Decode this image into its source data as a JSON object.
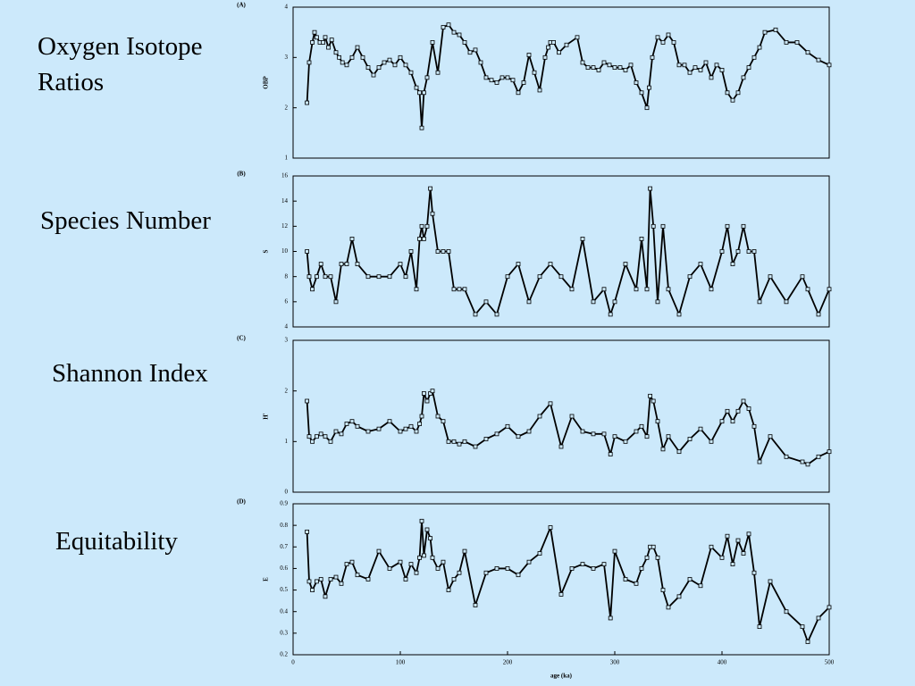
{
  "chart_data": [
    {
      "type": "line",
      "title": "Oxygen Isotope Ratios",
      "panel_label": "(A)",
      "ylabel": "OBP",
      "color": "#000000",
      "x": [
        13,
        15,
        18,
        20,
        22,
        25,
        28,
        30,
        33,
        36,
        40,
        43,
        46,
        50,
        55,
        60,
        65,
        70,
        75,
        80,
        85,
        90,
        95,
        100,
        105,
        110,
        115,
        118,
        120,
        122,
        125,
        130,
        135,
        140,
        145,
        150,
        155,
        160,
        165,
        170,
        175,
        180,
        185,
        190,
        195,
        200,
        205,
        210,
        215,
        220,
        225,
        230,
        235,
        238,
        240,
        243,
        248,
        255,
        265,
        270,
        275,
        280,
        285,
        290,
        295,
        300,
        305,
        310,
        315,
        320,
        325,
        330,
        332,
        335,
        340,
        345,
        350,
        355,
        360,
        365,
        370,
        375,
        380,
        385,
        390,
        395,
        400,
        405,
        410,
        415,
        420,
        425,
        430,
        435,
        440,
        450,
        460,
        470,
        480,
        490,
        500
      ],
      "values": [
        2.1,
        2.9,
        3.3,
        3.5,
        3.4,
        3.3,
        3.3,
        3.4,
        3.2,
        3.35,
        3.1,
        3.0,
        2.9,
        2.85,
        3.0,
        3.2,
        3.0,
        2.8,
        2.65,
        2.8,
        2.9,
        2.95,
        2.85,
        3.0,
        2.85,
        2.7,
        2.4,
        2.3,
        1.6,
        2.3,
        2.6,
        3.3,
        2.7,
        3.6,
        3.65,
        3.5,
        3.45,
        3.3,
        3.1,
        3.15,
        2.9,
        2.6,
        2.55,
        2.5,
        2.6,
        2.6,
        2.55,
        2.3,
        2.5,
        3.05,
        2.7,
        2.35,
        3.0,
        3.2,
        3.3,
        3.3,
        3.1,
        3.25,
        3.4,
        2.9,
        2.8,
        2.8,
        2.75,
        2.9,
        2.85,
        2.8,
        2.8,
        2.75,
        2.85,
        2.5,
        2.3,
        2.0,
        2.4,
        3.0,
        3.4,
        3.3,
        3.45,
        3.3,
        2.85,
        2.85,
        2.7,
        2.8,
        2.75,
        2.9,
        2.6,
        2.85,
        2.75,
        2.3,
        2.15,
        2.3,
        2.6,
        2.8,
        3.0,
        3.2,
        3.5,
        3.55,
        3.3,
        3.3,
        3.1,
        2.95,
        2.85
      ],
      "xlim": [
        0,
        500
      ],
      "ylim": [
        1,
        4
      ],
      "yticks": [
        1,
        2,
        3,
        4
      ]
    },
    {
      "type": "line",
      "title": "Species Number",
      "panel_label": "(B)",
      "ylabel": "S",
      "color": "#000000",
      "x": [
        13,
        15,
        18,
        22,
        26,
        30,
        35,
        40,
        45,
        50,
        55,
        60,
        70,
        80,
        90,
        100,
        105,
        110,
        115,
        118,
        120,
        122,
        125,
        128,
        130,
        135,
        140,
        145,
        150,
        155,
        160,
        170,
        180,
        190,
        200,
        210,
        220,
        230,
        240,
        250,
        260,
        270,
        280,
        290,
        296,
        300,
        310,
        320,
        325,
        330,
        333,
        336,
        340,
        345,
        350,
        360,
        370,
        380,
        390,
        400,
        405,
        410,
        415,
        420,
        425,
        430,
        435,
        445,
        460,
        475,
        480,
        490,
        500
      ],
      "values": [
        10,
        8,
        7,
        8,
        9,
        8,
        8,
        6,
        9,
        9,
        11,
        9,
        8,
        8,
        8,
        9,
        8,
        10,
        7,
        11,
        12,
        11,
        12,
        15,
        13,
        10,
        10,
        10,
        7,
        7,
        7,
        5,
        6,
        5,
        8,
        9,
        6,
        8,
        9,
        8,
        7,
        11,
        6,
        7,
        5,
        6,
        9,
        7,
        11,
        7,
        15,
        12,
        6,
        12,
        7,
        5,
        8,
        9,
        7,
        10,
        12,
        9,
        10,
        12,
        10,
        10,
        6,
        8,
        6,
        8,
        7,
        5,
        7
      ],
      "xlim": [
        0,
        500
      ],
      "ylim": [
        4,
        16
      ],
      "yticks": [
        4,
        6,
        8,
        10,
        12,
        14,
        16
      ]
    },
    {
      "type": "line",
      "title": "Shannon Index",
      "panel_label": "(C)",
      "ylabel": "H'",
      "color": "#000000",
      "x": [
        13,
        15,
        18,
        22,
        26,
        30,
        35,
        40,
        45,
        50,
        55,
        60,
        70,
        80,
        90,
        100,
        105,
        110,
        115,
        118,
        120,
        122,
        125,
        128,
        130,
        135,
        140,
        145,
        150,
        155,
        160,
        170,
        180,
        190,
        200,
        210,
        220,
        230,
        240,
        250,
        260,
        270,
        280,
        290,
        296,
        300,
        310,
        320,
        325,
        330,
        333,
        336,
        340,
        345,
        350,
        360,
        370,
        380,
        390,
        400,
        405,
        410,
        415,
        420,
        425,
        430,
        435,
        445,
        460,
        475,
        480,
        490,
        500
      ],
      "values": [
        1.8,
        1.1,
        1.0,
        1.1,
        1.15,
        1.1,
        1.0,
        1.2,
        1.15,
        1.35,
        1.4,
        1.3,
        1.2,
        1.25,
        1.4,
        1.2,
        1.25,
        1.3,
        1.2,
        1.35,
        1.5,
        1.95,
        1.8,
        1.95,
        2.0,
        1.5,
        1.4,
        1.0,
        1.0,
        0.95,
        1.0,
        0.9,
        1.05,
        1.15,
        1.3,
        1.1,
        1.2,
        1.5,
        1.75,
        0.9,
        1.5,
        1.2,
        1.15,
        1.15,
        0.75,
        1.1,
        1.0,
        1.2,
        1.3,
        1.1,
        1.9,
        1.8,
        1.4,
        0.85,
        1.1,
        0.8,
        1.05,
        1.25,
        1.0,
        1.4,
        1.6,
        1.4,
        1.6,
        1.8,
        1.65,
        1.3,
        0.6,
        1.1,
        0.7,
        0.6,
        0.55,
        0.7,
        0.8
      ],
      "xlim": [
        0,
        500
      ],
      "ylim": [
        0,
        3
      ],
      "yticks": [
        0,
        1,
        2,
        3
      ]
    },
    {
      "type": "line",
      "title": "Equitability",
      "panel_label": "(D)",
      "ylabel": "E",
      "xlabel": "age (ka)",
      "color": "#000000",
      "x": [
        13,
        15,
        18,
        22,
        26,
        30,
        35,
        40,
        45,
        50,
        55,
        60,
        70,
        80,
        90,
        100,
        105,
        110,
        115,
        118,
        120,
        122,
        125,
        128,
        130,
        135,
        140,
        145,
        150,
        155,
        160,
        170,
        180,
        190,
        200,
        210,
        220,
        230,
        240,
        250,
        260,
        270,
        280,
        290,
        296,
        300,
        310,
        320,
        325,
        330,
        333,
        336,
        340,
        345,
        350,
        360,
        370,
        380,
        390,
        400,
        405,
        410,
        415,
        420,
        425,
        430,
        435,
        445,
        460,
        475,
        480,
        490,
        500
      ],
      "values": [
        0.77,
        0.54,
        0.5,
        0.54,
        0.55,
        0.47,
        0.55,
        0.56,
        0.53,
        0.62,
        0.63,
        0.57,
        0.55,
        0.68,
        0.6,
        0.63,
        0.55,
        0.62,
        0.58,
        0.65,
        0.82,
        0.66,
        0.78,
        0.74,
        0.65,
        0.6,
        0.63,
        0.5,
        0.55,
        0.58,
        0.68,
        0.43,
        0.58,
        0.6,
        0.6,
        0.57,
        0.63,
        0.67,
        0.79,
        0.48,
        0.6,
        0.62,
        0.6,
        0.62,
        0.37,
        0.68,
        0.55,
        0.53,
        0.6,
        0.65,
        0.7,
        0.7,
        0.65,
        0.5,
        0.42,
        0.47,
        0.55,
        0.52,
        0.7,
        0.65,
        0.75,
        0.62,
        0.73,
        0.67,
        0.76,
        0.58,
        0.33,
        0.54,
        0.4,
        0.33,
        0.26,
        0.37,
        0.42
      ],
      "xlim": [
        0,
        500
      ],
      "ylim": [
        0.2,
        0.9
      ],
      "yticks": [
        0.2,
        0.3,
        0.4,
        0.5,
        0.6,
        0.7,
        0.8,
        0.9
      ],
      "xticks": [
        0,
        100,
        200,
        300,
        400,
        500
      ]
    }
  ]
}
